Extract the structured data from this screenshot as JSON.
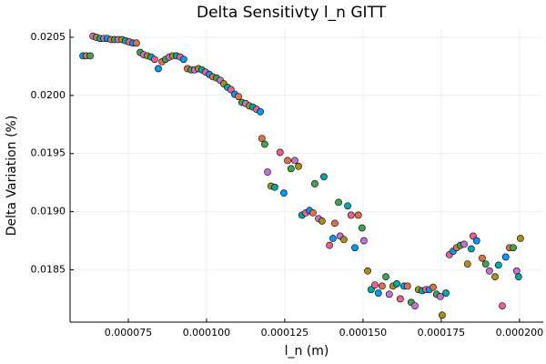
{
  "chart_data": {
    "type": "scatter",
    "title": "Delta Sensitivty l_n GITT",
    "x_label": "l_n (m)",
    "y_label": "Delta Variation (%)",
    "xlim": [
      5.64e-05,
      0.0002076
    ],
    "ylim": [
      0.01805,
      0.02057
    ],
    "xticks": [
      7.5e-05,
      {
        "value": 0.0001,
        "label": "0.000100"
      },
      0.000125,
      {
        "value": 0.00015,
        "label": "0.000150"
      },
      0.000175,
      {
        "value": 0.0002,
        "label": "0.000200"
      }
    ],
    "yticks": [
      0.0185,
      {
        "value": 0.019,
        "label": "0.0190"
      },
      0.0195,
      {
        "value": 0.02,
        "label": "0.0200"
      },
      0.0205
    ],
    "grid": true,
    "palette": [
      "#009AFA",
      "#E36F47",
      "#3EA44E",
      "#C371D2",
      "#AC8D18",
      "#00A9AD",
      "#ED5E93"
    ],
    "x": [
      6.05e-05,
      6.16e-05,
      6.28e-05,
      6.37e-05,
      6.48e-05,
      6.6e-05,
      6.72e-05,
      6.83e-05,
      6.95e-05,
      7.06e-05,
      7.18e-05,
      7.3e-05,
      7.41e-05,
      7.53e-05,
      7.65e-05,
      7.76e-05,
      7.88e-05,
      7.99e-05,
      8.11e-05,
      8.23e-05,
      8.34e-05,
      8.46e-05,
      8.58e-05,
      8.69e-05,
      8.81e-05,
      8.92e-05,
      9.04e-05,
      9.16e-05,
      9.27e-05,
      9.39e-05,
      9.51e-05,
      9.62e-05,
      9.74e-05,
      9.85e-05,
      9.97e-05,
      0.0001009,
      0.000102,
      0.0001032,
      0.0001044,
      0.0001055,
      0.0001067,
      0.0001078,
      0.000109,
      0.0001102,
      0.0001113,
      0.0001125,
      0.0001137,
      0.0001148,
      0.000116,
      0.0001172,
      0.0001177,
      0.0001186,
      0.0001195,
      0.0001206,
      0.0001218,
      0.0001235,
      0.0001247,
      0.0001259,
      0.000127,
      0.0001282,
      0.0001294,
      0.0001305,
      0.0001317,
      0.0001329,
      0.000134,
      0.0001346,
      0.0001358,
      0.0001369,
      0.0001375,
      0.0001393,
      0.0001404,
      0.000141,
      0.0001422,
      0.0001427,
      0.0001439,
      0.0001451,
      0.0001462,
      0.0001474,
      0.0001485,
      0.0001497,
      0.0001503,
      0.0001515,
      0.0001526,
      0.0001538,
      0.0001549,
      0.0001561,
      0.0001573,
      0.0001584,
      0.0001596,
      0.0001608,
      0.0001619,
      0.0001631,
      0.0001642,
      0.0001654,
      0.0001666,
      0.0001677,
      0.0001689,
      0.0001701,
      0.0001712,
      0.0001724,
      0.0001735,
      0.0001747,
      0.0001753,
      0.0001765,
      0.0001776,
      0.0001788,
      0.0001799,
      0.0001811,
      0.0001823,
      0.0001834,
      0.0001846,
      0.0001852,
      0.0001863,
      0.0001881,
      0.0001892,
      0.0001904,
      0.0001922,
      0.0001933,
      0.0001945,
      0.0001956,
      0.0001968,
      0.000198,
      0.0001991,
      0.0002003,
      0.0001997
    ],
    "values": [
      0.02034,
      0.02034,
      0.02034,
      0.02051,
      0.0205,
      0.02049,
      0.02049,
      0.02049,
      0.02048,
      0.02048,
      0.02048,
      0.02048,
      0.02047,
      0.02046,
      0.02045,
      0.02045,
      0.02037,
      0.02035,
      0.02034,
      0.02033,
      0.02031,
      0.02023,
      0.02029,
      0.02031,
      0.02033,
      0.02034,
      0.02034,
      0.02033,
      0.02031,
      0.02023,
      0.02022,
      0.02022,
      0.02023,
      0.02022,
      0.0202,
      0.02018,
      0.02016,
      0.02015,
      0.02013,
      0.0201,
      0.02007,
      0.02005,
      0.02001,
      0.01999,
      0.01994,
      0.01993,
      0.01991,
      0.0199,
      0.01988,
      0.01986,
      0.01963,
      0.01958,
      0.01934,
      0.01922,
      0.01921,
      0.01951,
      0.01916,
      0.01944,
      0.01937,
      0.01944,
      0.01939,
      0.01897,
      0.01899,
      0.01901,
      0.01899,
      0.01924,
      0.01894,
      0.01892,
      0.0193,
      0.01871,
      0.01877,
      0.0189,
      0.01908,
      0.01879,
      0.01876,
      0.01905,
      0.01897,
      0.01869,
      0.01897,
      0.01886,
      0.01875,
      0.01849,
      0.01833,
      0.01837,
      0.0183,
      0.01836,
      0.01844,
      0.01829,
      0.01836,
      0.01838,
      0.01825,
      0.01836,
      0.01836,
      0.01822,
      0.01819,
      0.01833,
      0.01832,
      0.01833,
      0.01833,
      0.01835,
      0.01829,
      0.01827,
      0.01811,
      0.0183,
      0.01863,
      0.01866,
      0.01869,
      0.01871,
      0.01872,
      0.01855,
      0.01868,
      0.01879,
      0.01875,
      0.0186,
      0.01855,
      0.01849,
      0.01844,
      0.01854,
      0.01819,
      0.01861,
      0.01869,
      0.01869,
      0.01849,
      0.01877,
      0.01844
    ]
  }
}
